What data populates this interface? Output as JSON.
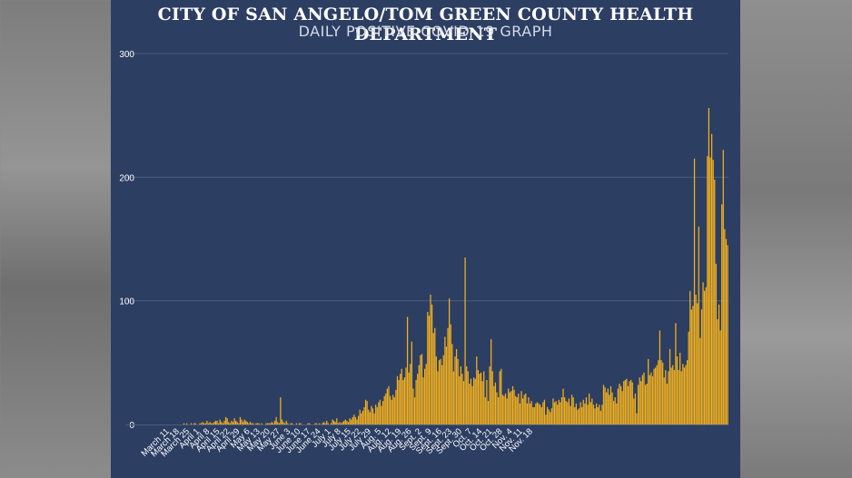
{
  "chart_data": {
    "type": "bar",
    "title": "CITY OF SAN ANGELO/TOM GREEN COUNTY HEALTH DEPARTMENT",
    "subtitle": "DAILY POSITIVE COVID-19 GRAPH",
    "ylim": [
      0,
      300
    ],
    "yticks": [
      "0",
      "100",
      "200",
      "300"
    ],
    "grid": true,
    "colors": {
      "bar": "#f2b01e",
      "background": "#2c3e62",
      "grid": "#4a5c80",
      "text": "#ffffff"
    },
    "start_date": "March 11",
    "x_tick_labels": [
      "March 11",
      "March 18",
      "March 25",
      "April 1",
      "April 8",
      "April 15",
      "April 22",
      "April 29",
      "May 6",
      "May 13",
      "May 20",
      "May 27",
      "June 3",
      "June 10",
      "June 17",
      "June 24",
      "July 1",
      "July 8",
      "July 15",
      "July 22",
      "July 29",
      "Aug. 5",
      "Aug. 12",
      "Aug. 19",
      "Aug. 26",
      "Sept. 2",
      "Sept. 9",
      "Sept. 16",
      "Sept. 23",
      "Sept. 30",
      "Oct. 7",
      "Oct. 14",
      "Oct. 21",
      "Oct. 28",
      "Nov. 4",
      "Nov. 11",
      "Nov. 18"
    ],
    "values": [
      0,
      0,
      0,
      0,
      0,
      0,
      0,
      0,
      0,
      0,
      1,
      0,
      1,
      0,
      0,
      1,
      0,
      1,
      1,
      0,
      0,
      1,
      1,
      2,
      1,
      1,
      3,
      1,
      2,
      1,
      1,
      2,
      3,
      3,
      1,
      4,
      2,
      1,
      3,
      6,
      5,
      2,
      1,
      3,
      2,
      5,
      3,
      2,
      1,
      6,
      4,
      2,
      4,
      3,
      2,
      1,
      2,
      1,
      1,
      0,
      1,
      1,
      1,
      0,
      1,
      0,
      0,
      1,
      1,
      1,
      1,
      2,
      1,
      3,
      6,
      2,
      1,
      22,
      4,
      2,
      1,
      3,
      1,
      0,
      1,
      1,
      0,
      0,
      1,
      0,
      1,
      1,
      0,
      0,
      0,
      0,
      1,
      1,
      0,
      0,
      0,
      1,
      1,
      0,
      1,
      0,
      1,
      2,
      1,
      3,
      1,
      0,
      1,
      4,
      3,
      2,
      5,
      1,
      2,
      1,
      2,
      3,
      4,
      3,
      2,
      5,
      4,
      6,
      8,
      6,
      4,
      7,
      12,
      9,
      11,
      14,
      20,
      19,
      12,
      10,
      15,
      13,
      9,
      16,
      14,
      18,
      20,
      15,
      19,
      23,
      25,
      29,
      31,
      23,
      20,
      24,
      22,
      28,
      39,
      36,
      41,
      45,
      36,
      38,
      46,
      87,
      42,
      49,
      67,
      29,
      22,
      36,
      41,
      48,
      56,
      57,
      38,
      45,
      49,
      91,
      88,
      105,
      97,
      74,
      78,
      55,
      43,
      52,
      53,
      48,
      56,
      71,
      63,
      78,
      102,
      81,
      65,
      43,
      55,
      61,
      53,
      39,
      47,
      41,
      35,
      135,
      47,
      43,
      33,
      37,
      31,
      38,
      37,
      55,
      44,
      41,
      42,
      35,
      43,
      22,
      36,
      19,
      47,
      69,
      43,
      31,
      34,
      26,
      22,
      43,
      45,
      24,
      23,
      25,
      21,
      29,
      26,
      27,
      31,
      28,
      23,
      22,
      25,
      17,
      27,
      21,
      24,
      25,
      17,
      22,
      17,
      19,
      14,
      14,
      17,
      18,
      17,
      16,
      14,
      18,
      20,
      8,
      14,
      12,
      10,
      13,
      21,
      18,
      19,
      16,
      20,
      18,
      22,
      29,
      22,
      19,
      18,
      21,
      15,
      24,
      22,
      14,
      17,
      12,
      13,
      18,
      14,
      20,
      17,
      22,
      16,
      25,
      18,
      21,
      16,
      13,
      17,
      14,
      16,
      11,
      16,
      32,
      30,
      26,
      29,
      24,
      31,
      26,
      19,
      22,
      17,
      29,
      33,
      31,
      27,
      35,
      36,
      37,
      31,
      35,
      36,
      34,
      21,
      25,
      9,
      32,
      38,
      35,
      40,
      42,
      32,
      33,
      53,
      40,
      42,
      39,
      45,
      46,
      48,
      52,
      76,
      52,
      50,
      38,
      44,
      33,
      43,
      61,
      46,
      48,
      44,
      82,
      55,
      44,
      58,
      43,
      49,
      46,
      48,
      52,
      75,
      108,
      93,
      96,
      215,
      105,
      98,
      160,
      70,
      93,
      115,
      108,
      111,
      217,
      256,
      216,
      235,
      214,
      198,
      130,
      85,
      97,
      76,
      178,
      222,
      158,
      150,
      145
    ]
  }
}
